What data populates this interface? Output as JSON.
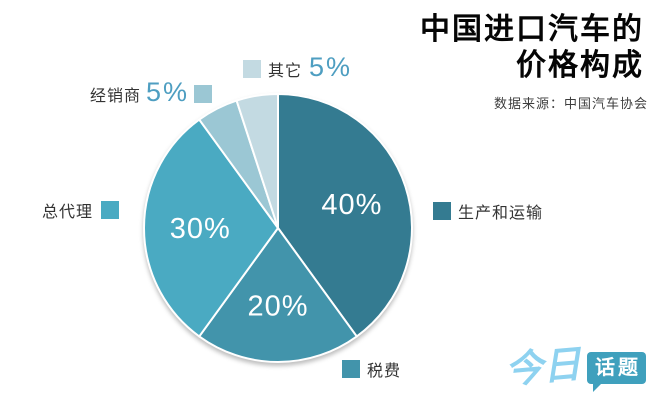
{
  "header": {
    "title_line1": "中国进口汽车的",
    "title_line2": "价格构成",
    "source": "数据来源：中国汽车协会"
  },
  "chart_data": {
    "type": "pie",
    "title": "中国进口汽车的价格构成",
    "source": "数据来源：中国汽车协会",
    "direction": "clockwise",
    "start_angle_deg": 0,
    "units": "%",
    "slices": [
      {
        "id": "shengchan-he-yunshu",
        "label": "生产和运输",
        "value": 40,
        "pct_label": "40%",
        "color": "#347b91",
        "label_inside": true
      },
      {
        "id": "shuifei",
        "label": "税费",
        "value": 20,
        "pct_label": "20%",
        "color": "#4294ab",
        "label_inside": true
      },
      {
        "id": "zongdaili",
        "label": "总代理",
        "value": 30,
        "pct_label": "30%",
        "color": "#4aaac2",
        "label_inside": true
      },
      {
        "id": "jingxiaoshang",
        "label": "经销商",
        "value": 5,
        "pct_label": "5%",
        "color": "#9bc7d4",
        "label_inside": false
      },
      {
        "id": "qita",
        "label": "其它",
        "value": 5,
        "pct_label": "5%",
        "color": "#c3dae2",
        "label_inside": false
      }
    ],
    "label_color_inside": "#ffffff",
    "callout_pct_color": "#4e9ec1"
  },
  "logo": {
    "text1": "今日",
    "text2": "话题",
    "text1_color": "#8ed2f0",
    "bubble_color": "#3fa0bd"
  }
}
